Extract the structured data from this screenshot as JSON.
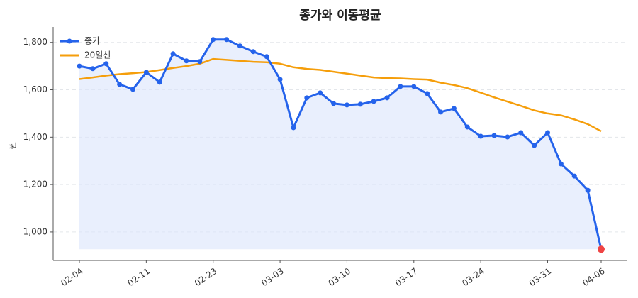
{
  "chart_data": {
    "type": "line",
    "title": "종가와 이동평균",
    "y_label": "원",
    "categories": [
      "02-04",
      null,
      null,
      null,
      null,
      "02-11",
      null,
      null,
      null,
      null,
      "02-23",
      null,
      null,
      null,
      null,
      "03-03",
      null,
      null,
      null,
      null,
      "03-10",
      null,
      null,
      null,
      null,
      "03-17",
      null,
      null,
      null,
      null,
      "03-24",
      null,
      null,
      null,
      null,
      "03-31",
      null,
      null,
      null,
      "04-06"
    ],
    "series": [
      {
        "name": "종가",
        "color": "#2563eb",
        "marker": true,
        "fill": "#dbe5fb",
        "values": [
          1700,
          1689,
          1710,
          1623,
          1602,
          1674,
          1632,
          1752,
          1722,
          1719,
          1812,
          1812,
          1785,
          1761,
          1740,
          1644,
          1440,
          1566,
          1587,
          1542,
          1536,
          1539,
          1551,
          1566,
          1614,
          1614,
          1584,
          1506,
          1521,
          1443,
          1404,
          1407,
          1401,
          1419,
          1365,
          1419,
          1287,
          1236,
          1176,
          927
        ]
      },
      {
        "name": "20일선",
        "color": "#f59e0b",
        "marker": false,
        "values": [
          1645,
          1652,
          1660,
          1666,
          1670,
          1675,
          1683,
          1692,
          1700,
          1710,
          1730,
          1726,
          1722,
          1718,
          1716,
          1710,
          1695,
          1688,
          1684,
          1676,
          1668,
          1660,
          1652,
          1649,
          1648,
          1645,
          1643,
          1630,
          1620,
          1607,
          1588,
          1568,
          1550,
          1532,
          1513,
          1500,
          1492,
          1475,
          1455,
          1425
        ]
      }
    ],
    "last_point_color": "#ef4444",
    "ylim": [
      880,
      1865
    ],
    "yticks": [
      {
        "value": 1000,
        "label": "1,000"
      },
      {
        "value": 1200,
        "label": "1,200"
      },
      {
        "value": 1400,
        "label": "1,400"
      },
      {
        "value": 1600,
        "label": "1,600"
      },
      {
        "value": 1800,
        "label": "1,800"
      }
    ],
    "grid": true,
    "legend": "upper-left"
  }
}
